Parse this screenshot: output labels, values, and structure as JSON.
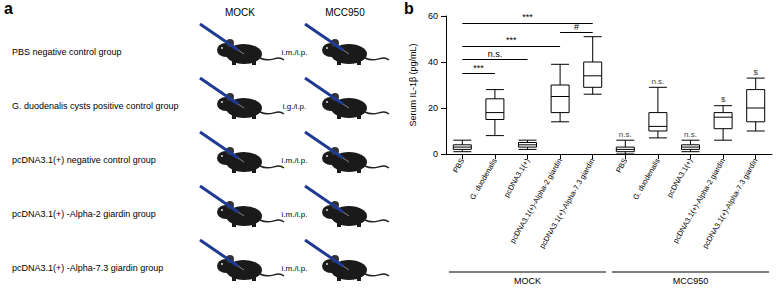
{
  "figure": {
    "panel_labels": [
      "a",
      "b"
    ]
  },
  "diagram": {
    "columns": [
      "MOCK",
      "MCC950"
    ],
    "rows": [
      {
        "label": "PBS negative control group",
        "route": "i.m./i.p."
      },
      {
        "label": "G. duodenalis cysts positive control group",
        "route": "i.g./i.p."
      },
      {
        "label": "pcDNA3.1(+) negative control group",
        "route": "i.m./i.p."
      },
      {
        "label": "pcDNA3.1(+) -Alpha-2 giardin group",
        "route": "i.m./i.p."
      },
      {
        "label": "pcDNA3.1(+) -Alpha-7.3 giardin group",
        "route": "i.m./i.p."
      }
    ]
  },
  "chart_data": {
    "type": "boxplot",
    "y_label": "Serum IL-1β (pg/mL)",
    "groups": [
      {
        "label": "MOCK",
        "categories": [
          "PBS",
          "G. duodenalis",
          "pcDNA3.1(+)",
          "pcDNA3.1(+)-Alpha-2 giardin",
          "pcDNA3.1(+)-Alpha-7.3 giardin"
        ]
      },
      {
        "label": "MCC950",
        "categories": [
          "PBS",
          "G. duodenalis",
          "pcDNA3.1(+)",
          "pcDNA3.1(+)-Alpha-2 giardin",
          "pcDNA3.1(+)-Alpha-7.3 giardin"
        ]
      }
    ],
    "values": [
      [
        1,
        2,
        3,
        4,
        6
      ],
      [
        8,
        15,
        18,
        24,
        28
      ],
      [
        2,
        3,
        4,
        5,
        6
      ],
      [
        14,
        18,
        25,
        30,
        39
      ],
      [
        26,
        29,
        34,
        40,
        51
      ],
      [
        0,
        1,
        2,
        3,
        6
      ],
      [
        7,
        10,
        12,
        18,
        29
      ],
      [
        1,
        2,
        3,
        4,
        6
      ],
      [
        6,
        11,
        16,
        18,
        21
      ],
      [
        10,
        14,
        20,
        28,
        33
      ]
    ],
    "color": "#000000",
    "ylim": [
      0,
      60
    ],
    "yticks": [
      0,
      20,
      40,
      60
    ],
    "grid": false,
    "brackets": [
      {
        "group": "MOCK",
        "from": "PBS",
        "to": "G. duodenalis",
        "label": "***",
        "y": 35
      },
      {
        "group": "MOCK",
        "from": "PBS",
        "to": "pcDNA3.1(+)",
        "label": "n.s.",
        "y": 41
      },
      {
        "group": "MOCK",
        "from": "PBS",
        "to": "pcDNA3.1(+)-Alpha-2 giardin",
        "label": "***",
        "y": 47
      },
      {
        "group": "MOCK",
        "from": "pcDNA3.1(+)-Alpha-2 giardin",
        "to": "pcDNA3.1(+)-Alpha-7.3 giardin",
        "label": "#",
        "y": 53
      },
      {
        "group": "MOCK",
        "from": "PBS",
        "to": "pcDNA3.1(+)-Alpha-7.3 giardin",
        "label": "***",
        "y": 57
      }
    ],
    "marks": [
      {
        "group": "MCC950",
        "category": "PBS",
        "label": "n.s.",
        "y": 6
      },
      {
        "group": "MCC950",
        "category": "G. duodenalis",
        "label": "n.s.",
        "y": 29
      },
      {
        "group": "MCC950",
        "category": "pcDNA3.1(+)",
        "label": "n.s.",
        "y": 6
      },
      {
        "group": "MCC950",
        "category": "pcDNA3.1(+)-Alpha-2 giardin",
        "label": "$",
        "y": 21
      },
      {
        "group": "MCC950",
        "category": "pcDNA3.1(+)-Alpha-7.3 giardin",
        "label": "$",
        "y": 33
      }
    ]
  }
}
